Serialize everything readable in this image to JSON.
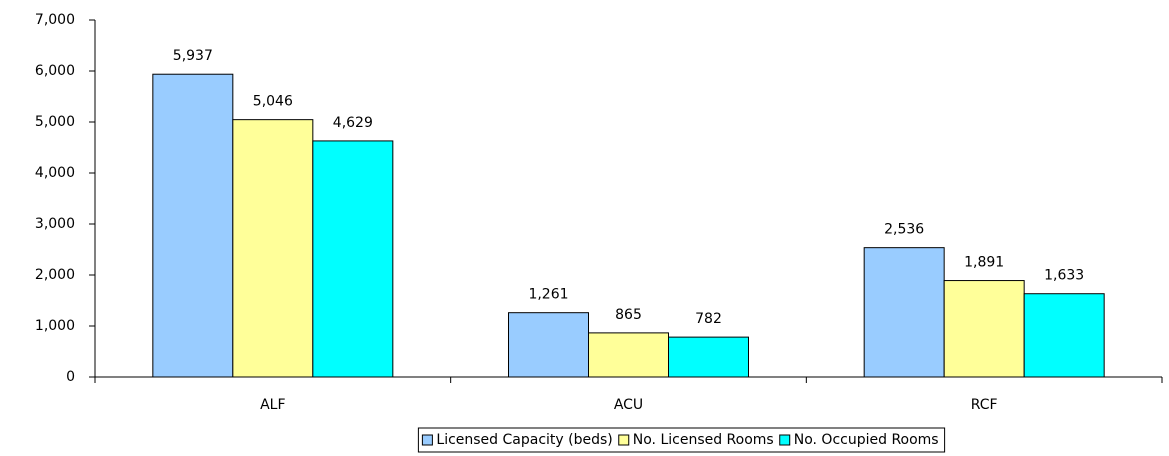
{
  "chart_data": {
    "type": "bar",
    "categories": [
      "ALF",
      "ACU",
      "RCF"
    ],
    "series": [
      {
        "name": "Licensed Capacity (beds)",
        "color": "#99ccff",
        "values": [
          5937,
          1261,
          2536
        ],
        "value_labels": [
          "5,937",
          "1,261",
          "2,536"
        ]
      },
      {
        "name": "No. Licensed Rooms",
        "color": "#ffff99",
        "values": [
          5046,
          865,
          1891
        ],
        "value_labels": [
          "5,046",
          "865",
          "1,891"
        ]
      },
      {
        "name": "No. Occupied Rooms",
        "color": "#00ffff",
        "values": [
          4629,
          782,
          1633
        ],
        "value_labels": [
          "4,629",
          "782",
          "1,633"
        ]
      }
    ],
    "ylim": [
      0,
      7000
    ],
    "yticks": [
      0,
      {
        "value": 1000,
        "label": "1,000"
      },
      {
        "value": 2000,
        "label": "2,000"
      },
      {
        "value": 3000,
        "label": "3,000"
      },
      {
        "value": 4000,
        "label": "4,000"
      },
      {
        "value": 5000,
        "label": "5,000"
      },
      {
        "value": 6000,
        "label": "6,000"
      },
      {
        "value": 7000,
        "label": "7,000"
      }
    ],
    "legend": "bottom"
  }
}
